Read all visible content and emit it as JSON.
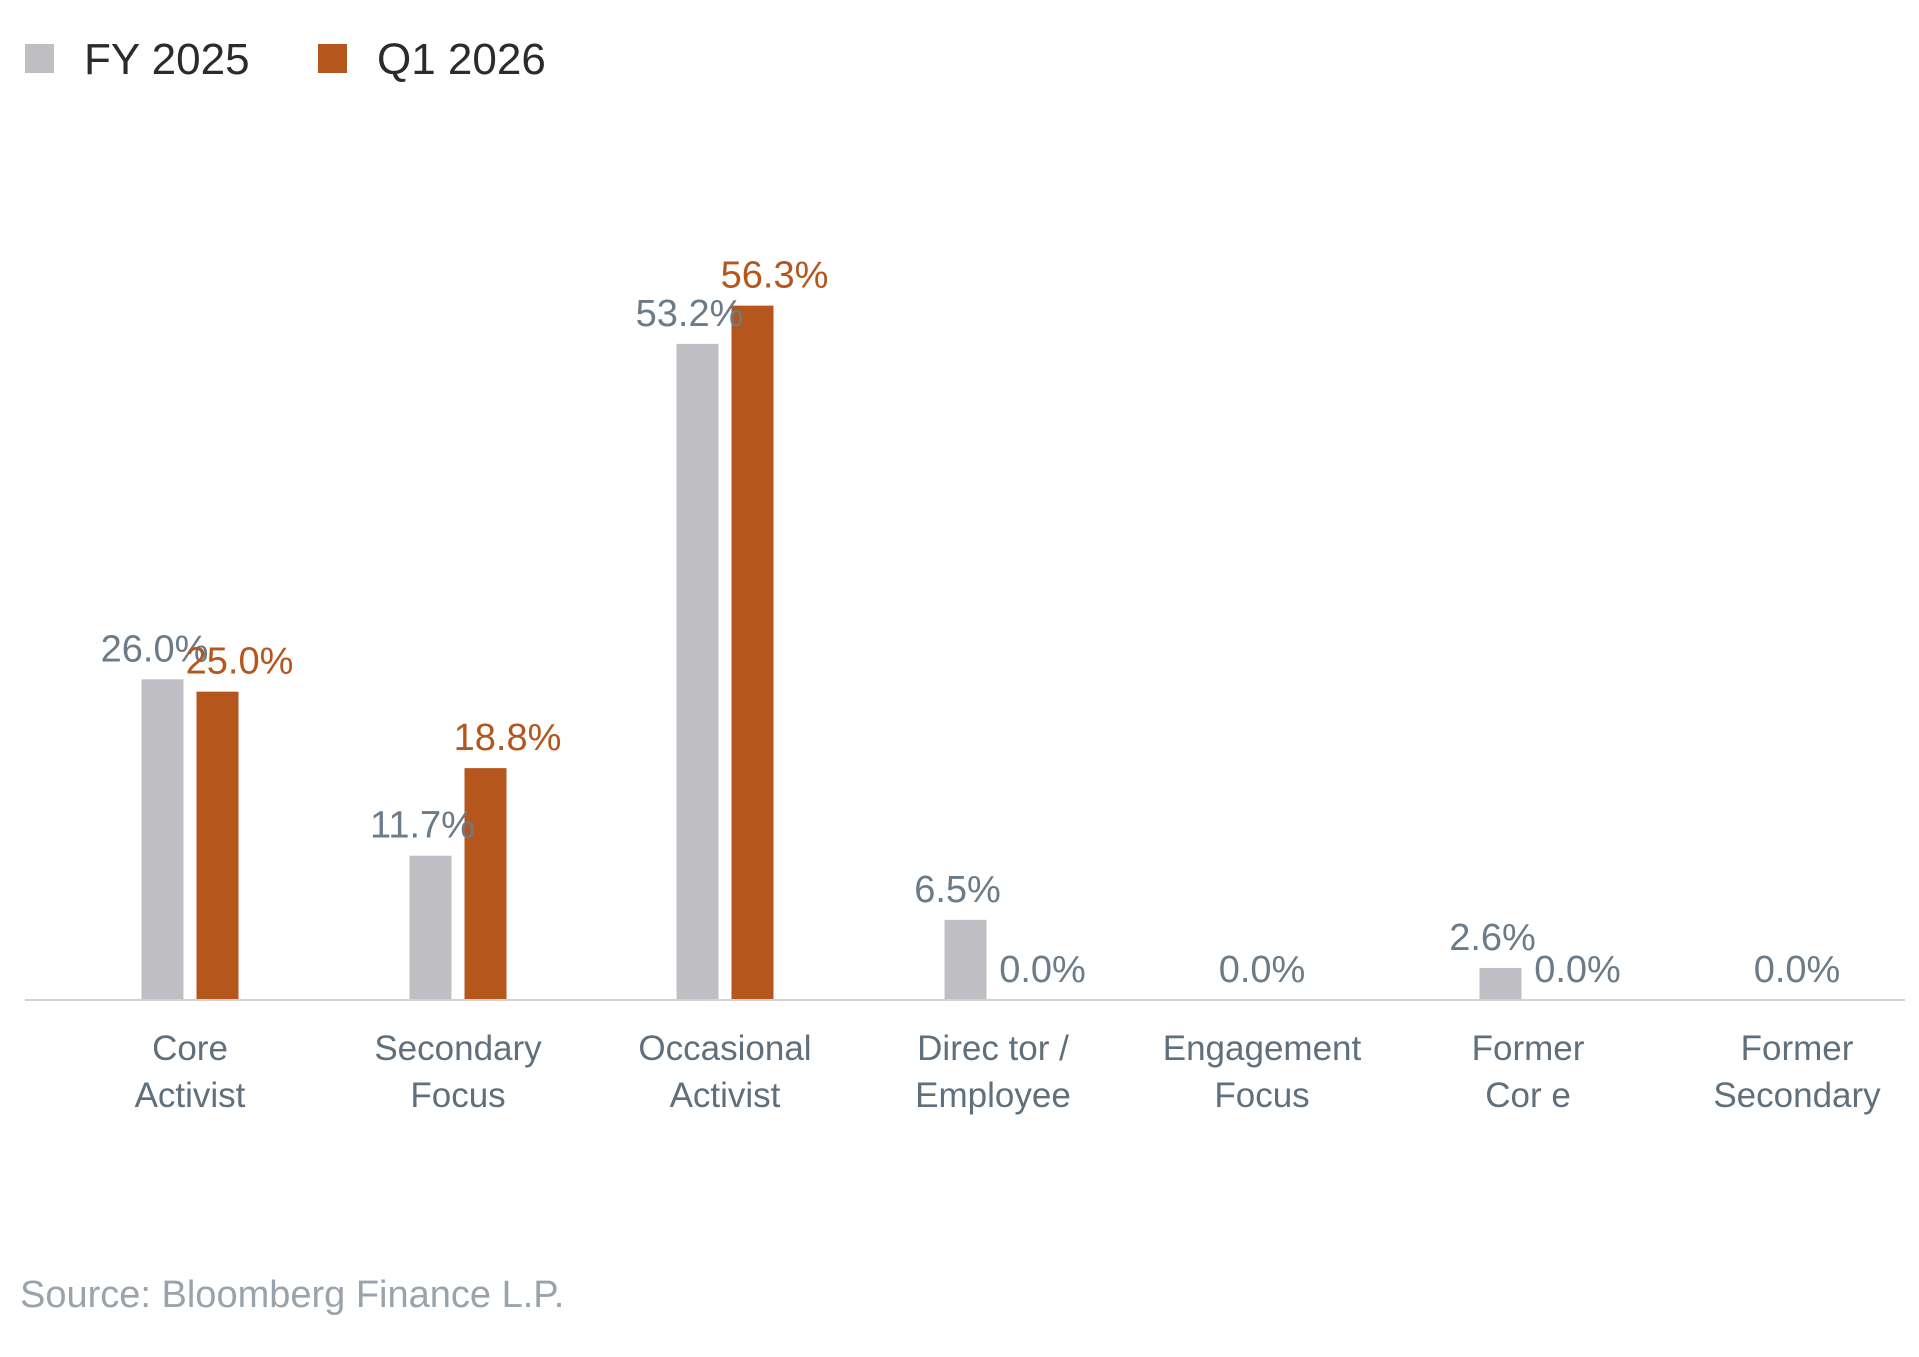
{
  "chart_data": {
    "type": "bar",
    "categories": [
      [
        "Core",
        "Activist"
      ],
      [
        "Secondary",
        "Focus"
      ],
      [
        "Occasional",
        "Activist"
      ],
      [
        "Direc tor /",
        "Employee"
      ],
      [
        "Engagement",
        "Focus"
      ],
      [
        "Former",
        "Cor e"
      ],
      [
        "Former",
        "Secondary"
      ]
    ],
    "series": [
      {
        "name": "FY 2025",
        "color": "#bfbfc3",
        "label_color": "#6b7b88",
        "values": [
          26.0,
          11.7,
          53.2,
          6.5,
          null,
          2.6,
          null
        ],
        "labels": [
          "26.0%",
          "11.7%",
          "53.2%",
          "6.5%",
          "",
          "2.6%",
          ""
        ]
      },
      {
        "name": "Q1  2026",
        "color": "#b5561d",
        "label_color": "#b5561d",
        "values": [
          25.0,
          18.8,
          56.3,
          0.0,
          0.0,
          0.0,
          0.0
        ],
        "labels": [
          "25.0%",
          "18.8%",
          "56.3%",
          "0.0%",
          "0.0%",
          "0.0%",
          "0.0%"
        ],
        "label_colors": [
          "#b5561d",
          "#b5561d",
          "#b5561d",
          "#6b7b88",
          "#6b7b88",
          "#6b7b88",
          "#6b7b88"
        ]
      }
    ],
    "ylim": [
      0,
      60
    ],
    "legend_position": "top-left",
    "grid": false,
    "baseline_color": "#d2d2d2"
  },
  "source": "Source: Bloomberg Finance L.P."
}
